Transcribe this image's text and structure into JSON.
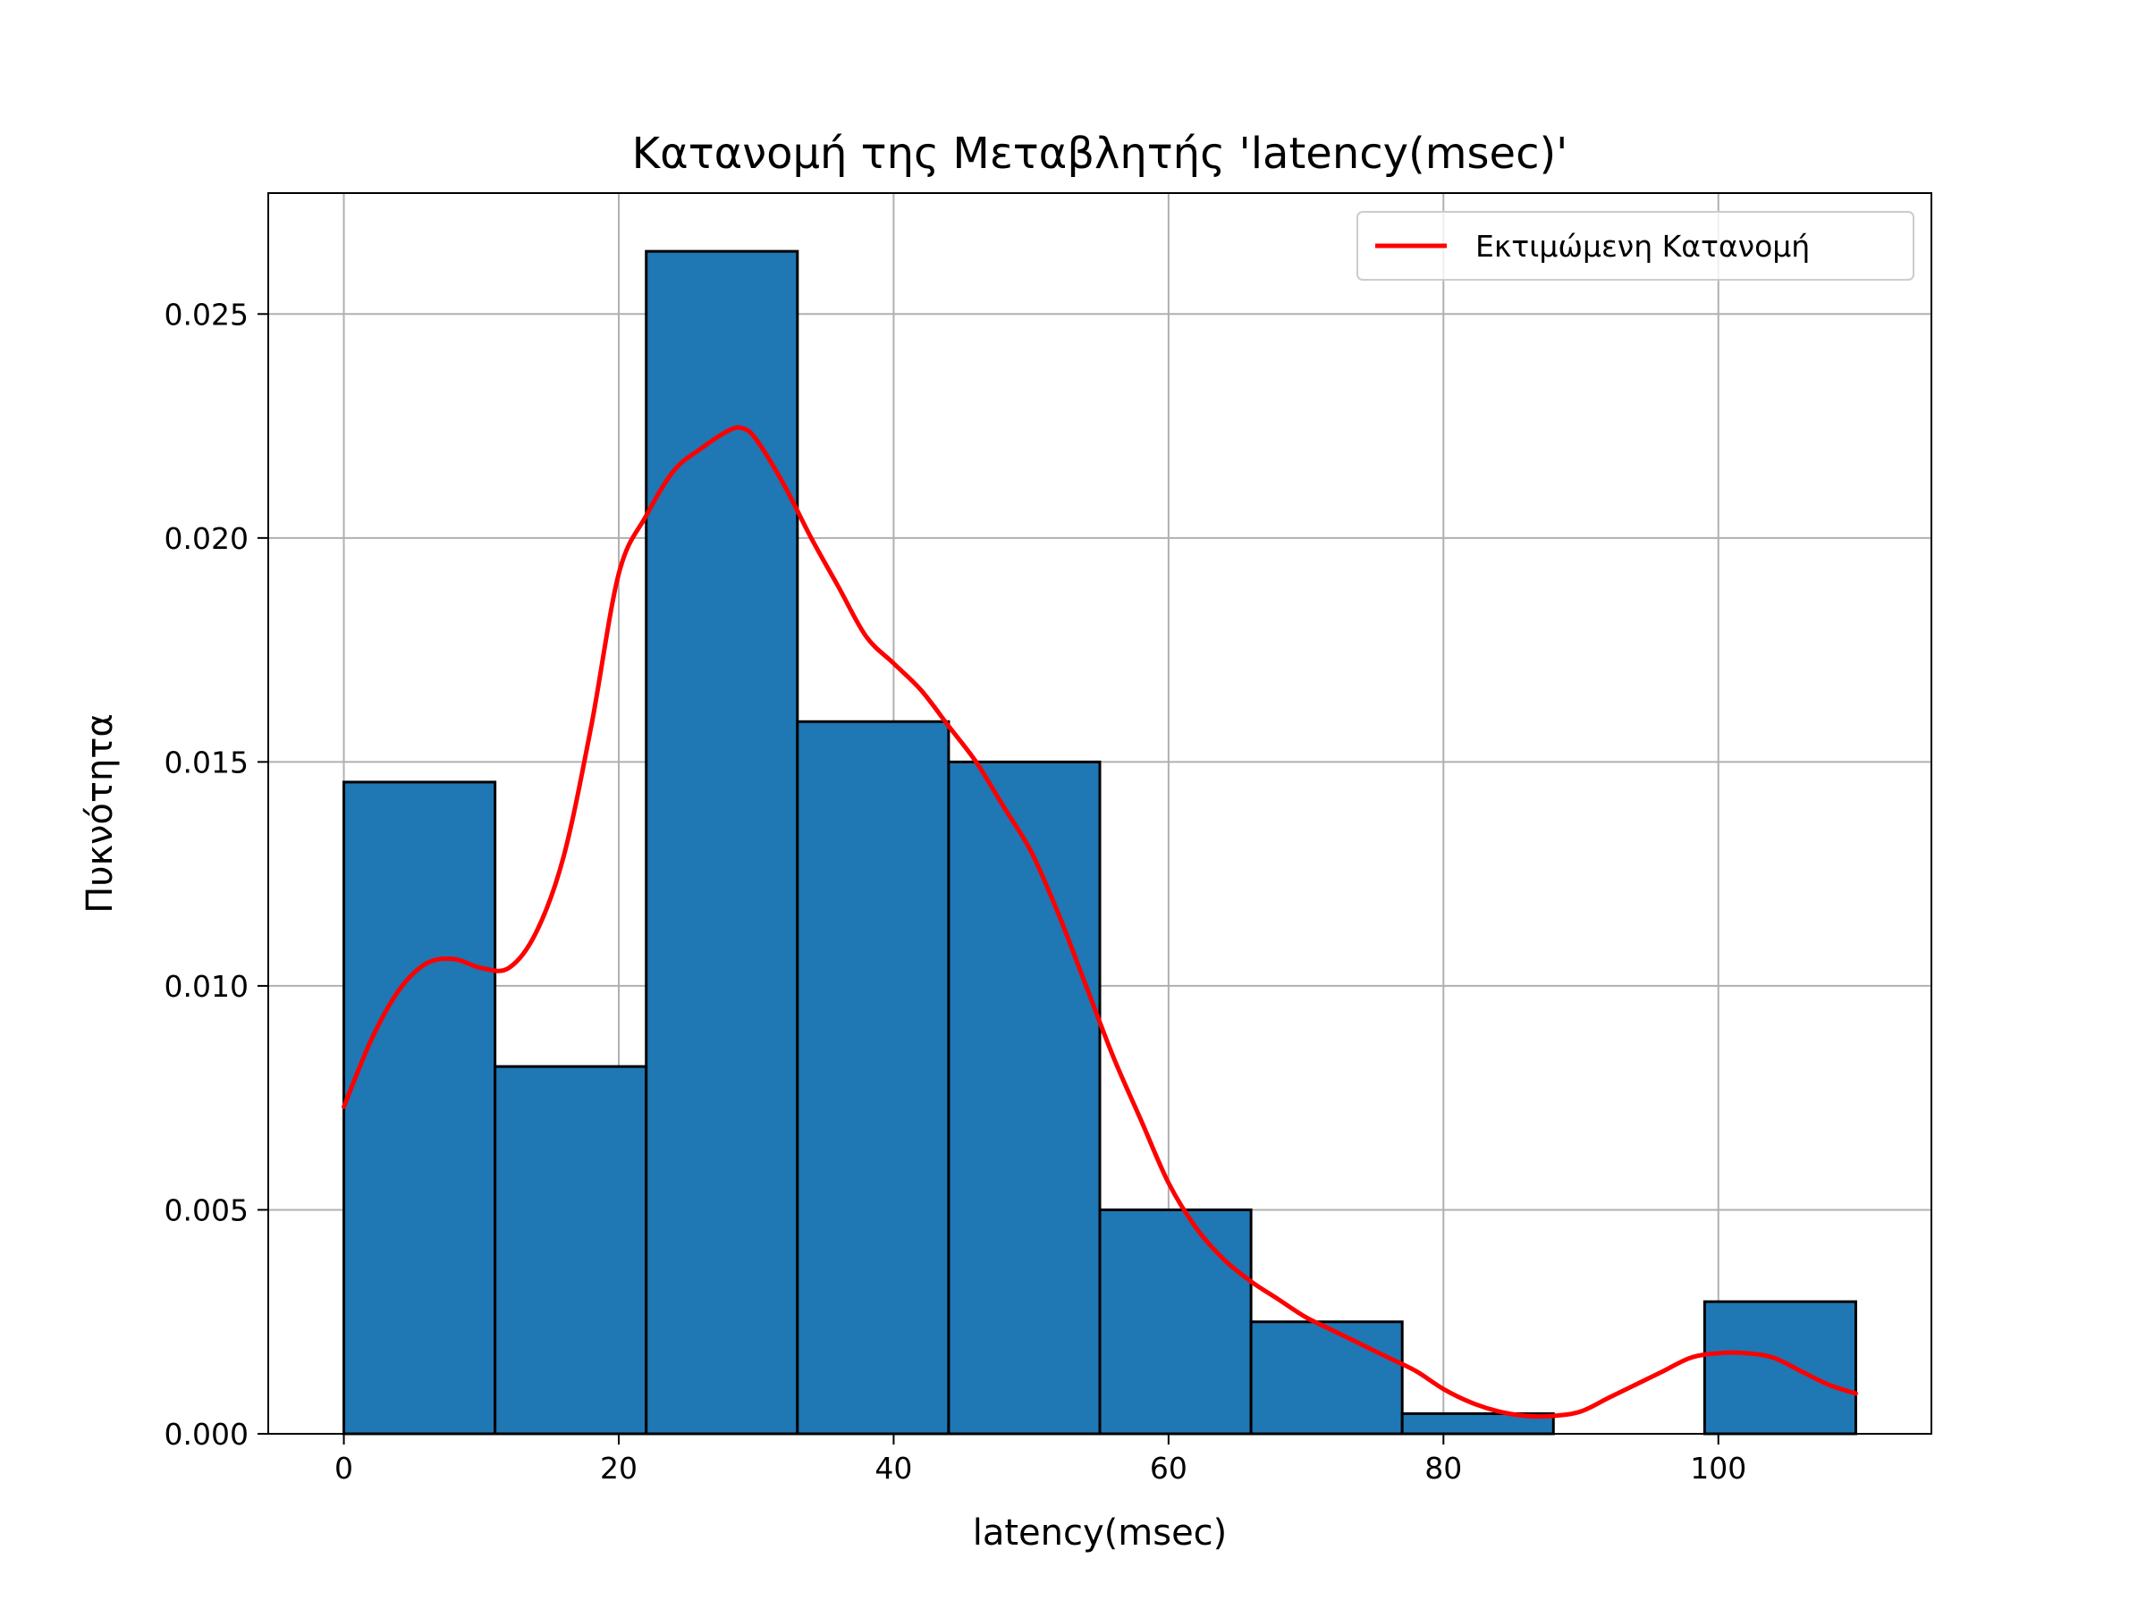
{
  "chart_data": {
    "type": "bar",
    "subtype": "histogram-with-kde",
    "title": "Κατανομή της Μεταβλητής 'latency(msec)'",
    "xlabel": "latency(msec)",
    "ylabel": "Πυκνότητα",
    "xlim": [
      -5.5,
      115.5
    ],
    "ylim": [
      0,
      0.0277
    ],
    "x_ticks": [
      0,
      20,
      40,
      60,
      80,
      100
    ],
    "y_ticks": [
      0.0,
      0.005,
      0.01,
      0.015,
      0.02,
      0.025
    ],
    "x_tick_labels": [
      "0",
      "20",
      "40",
      "60",
      "80",
      "100"
    ],
    "y_tick_labels": [
      "0.000",
      "0.005",
      "0.010",
      "0.015",
      "0.020",
      "0.025"
    ],
    "grid": true,
    "legend_position": "top-right",
    "bins": {
      "edges": [
        0,
        11,
        22,
        33,
        44,
        55,
        66,
        77,
        88,
        99,
        110
      ],
      "values": [
        0.01455,
        0.0082,
        0.0264,
        0.0159,
        0.015,
        0.005,
        0.0025,
        0.00045,
        0.0,
        0.00295
      ]
    },
    "series": [
      {
        "name": "Εκτιμώμενη Κατανομή",
        "type": "line",
        "x": [
          0,
          2,
          4,
          6,
          8,
          10,
          12,
          14,
          16,
          18,
          20,
          22,
          24,
          26,
          28,
          29,
          30,
          32,
          34,
          36,
          38,
          40,
          42,
          44,
          46,
          48,
          50,
          52,
          54,
          56,
          58,
          60,
          62,
          64,
          66,
          68,
          70,
          72,
          74,
          76,
          78,
          80,
          82,
          84,
          86,
          88,
          90,
          92,
          94,
          96,
          98,
          100,
          102,
          104,
          106,
          108,
          110
        ],
        "y": [
          0.0073,
          0.0088,
          0.0099,
          0.0105,
          0.0106,
          0.0104,
          0.0104,
          0.0112,
          0.0129,
          0.0158,
          0.0192,
          0.0205,
          0.0215,
          0.022,
          0.0224,
          0.02245,
          0.0222,
          0.0212,
          0.02,
          0.0189,
          0.0178,
          0.0172,
          0.0166,
          0.0158,
          0.015,
          0.014,
          0.013,
          0.0116,
          0.01,
          0.0084,
          0.007,
          0.0056,
          0.0046,
          0.0039,
          0.0034,
          0.003,
          0.0026,
          0.0023,
          0.002,
          0.0017,
          0.0014,
          0.001,
          0.0007,
          0.0005,
          0.0004,
          0.0004,
          0.0005,
          0.0008,
          0.0011,
          0.0014,
          0.0017,
          0.0018,
          0.0018,
          0.0017,
          0.0014,
          0.0011,
          0.0009
        ],
        "color": "#ff0000"
      }
    ],
    "colors": {
      "bar_fill": "#1f77b4",
      "bar_edge": "#000000",
      "kde_line": "#ff0000",
      "grid": "#b0b0b0"
    }
  }
}
